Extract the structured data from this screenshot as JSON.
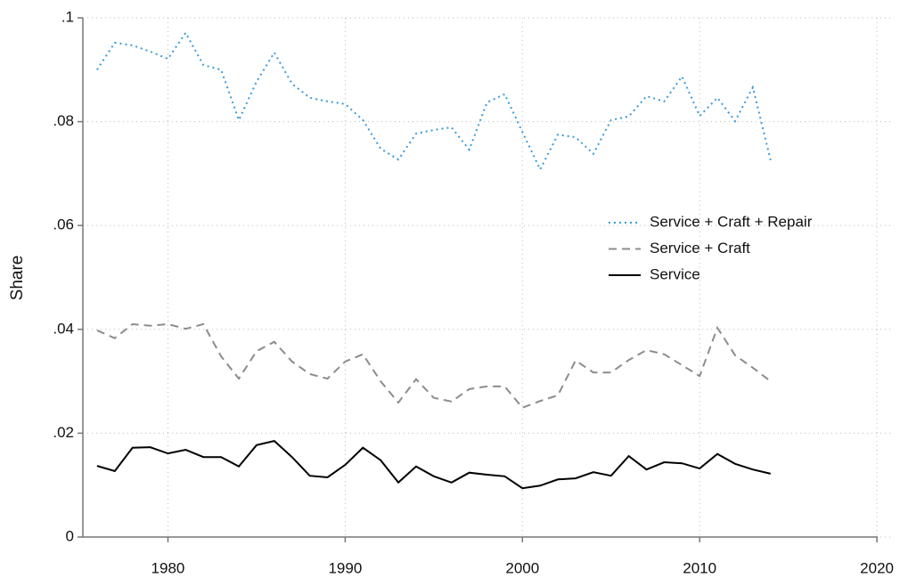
{
  "chart_data": {
    "type": "line",
    "y_label": "Share",
    "x": [
      1976,
      1977,
      1978,
      1979,
      1980,
      1981,
      1982,
      1983,
      1984,
      1985,
      1986,
      1987,
      1988,
      1989,
      1990,
      1991,
      1992,
      1993,
      1994,
      1995,
      1996,
      1997,
      1998,
      1999,
      2000,
      2001,
      2002,
      2003,
      2004,
      2005,
      2006,
      2007,
      2008,
      2009,
      2010,
      2011,
      2012,
      2013,
      2014
    ],
    "series": [
      {
        "name": "Service + Craft + Repair",
        "color": "#3a9ad9",
        "dash": "dotted",
        "values": [
          0.09,
          0.0952,
          0.0947,
          0.0935,
          0.0921,
          0.0971,
          0.0909,
          0.09,
          0.0803,
          0.0877,
          0.0933,
          0.0873,
          0.0846,
          0.0839,
          0.0834,
          0.0803,
          0.0748,
          0.0727,
          0.0777,
          0.0784,
          0.0789,
          0.0746,
          0.0837,
          0.0853,
          0.078,
          0.0708,
          0.0775,
          0.077,
          0.0738,
          0.0803,
          0.081,
          0.0849,
          0.0839,
          0.0887,
          0.0811,
          0.0846,
          0.0801,
          0.0866,
          0.0726
        ]
      },
      {
        "name": "Service + Craft",
        "color": "#8c8c8c",
        "dash": "dashed",
        "values": [
          0.0398,
          0.0383,
          0.041,
          0.0407,
          0.041,
          0.0401,
          0.041,
          0.0348,
          0.0305,
          0.0358,
          0.0376,
          0.0338,
          0.0314,
          0.0305,
          0.0338,
          0.0352,
          0.03,
          0.0259,
          0.0304,
          0.0268,
          0.0261,
          0.0285,
          0.029,
          0.029,
          0.0249,
          0.0262,
          0.0273,
          0.034,
          0.0317,
          0.0317,
          0.0341,
          0.036,
          0.0352,
          0.0331,
          0.031,
          0.0403,
          0.035,
          0.0326,
          0.03
        ]
      },
      {
        "name": "Service",
        "color": "#000000",
        "dash": "solid",
        "values": [
          0.0137,
          0.0127,
          0.0172,
          0.0173,
          0.0161,
          0.0168,
          0.0154,
          0.0154,
          0.0136,
          0.0177,
          0.0185,
          0.0154,
          0.0118,
          0.0115,
          0.0139,
          0.0172,
          0.0148,
          0.0105,
          0.0136,
          0.0117,
          0.0105,
          0.0124,
          0.012,
          0.0117,
          0.0094,
          0.0099,
          0.0111,
          0.0113,
          0.0125,
          0.0118,
          0.0156,
          0.013,
          0.0144,
          0.0142,
          0.0132,
          0.016,
          0.0141,
          0.013,
          0.0122
        ]
      }
    ],
    "xlim": [
      1975.2,
      2020.8
    ],
    "xticks": [
      1980,
      1990,
      2000,
      2010,
      2020
    ],
    "ylim": [
      0,
      0.1
    ],
    "yticks": [
      0,
      {
        "value": 0.02,
        "label": ".02"
      },
      {
        "value": 0.04,
        "label": ".04"
      },
      {
        "value": 0.06,
        "label": ".06"
      },
      {
        "value": 0.08,
        "label": ".08"
      },
      {
        "value": 0.1,
        "label": ".1"
      }
    ],
    "grid": true,
    "legend_position": "center right"
  }
}
